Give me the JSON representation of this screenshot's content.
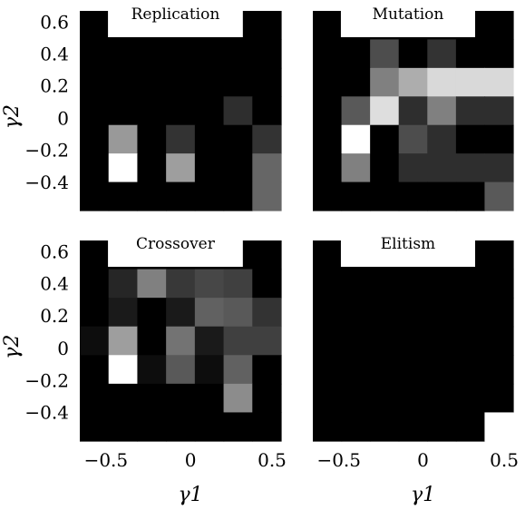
{
  "chart_data": [
    {
      "type": "heatmap",
      "title": "Replication",
      "xlabel": "",
      "ylabel": "γ2",
      "x_ticklabels": [],
      "y_ticklabels": [
        "0.6",
        "0.4",
        "0.2",
        "0",
        "−0.2",
        "−0.4"
      ],
      "values": [
        [
          0,
          0,
          0,
          0,
          0,
          0,
          0
        ],
        [
          0,
          0,
          0,
          0,
          0,
          0,
          0
        ],
        [
          0,
          0,
          0,
          0,
          0,
          0,
          0
        ],
        [
          0,
          0,
          0,
          0,
          0,
          0.18,
          0
        ],
        [
          0,
          0.6,
          0,
          0.2,
          0,
          0,
          0.2
        ],
        [
          0,
          1.0,
          0,
          0.62,
          0,
          0,
          0.4
        ],
        [
          0,
          0,
          0,
          0,
          0,
          0,
          0.4
        ]
      ]
    },
    {
      "type": "heatmap",
      "title": "Mutation",
      "xlabel": "",
      "ylabel": "",
      "x_ticklabels": [],
      "y_ticklabels": [],
      "values": [
        [
          0,
          0,
          0,
          0,
          0,
          0,
          0
        ],
        [
          0,
          0,
          0.3,
          0,
          0.2,
          0,
          0
        ],
        [
          0,
          0,
          0.5,
          0.68,
          0.85,
          0.85,
          0.85
        ],
        [
          0,
          0.35,
          0.87,
          0.18,
          0.5,
          0.18,
          0.18
        ],
        [
          0,
          1.0,
          0,
          0.3,
          0.18,
          0,
          0
        ],
        [
          0,
          0.5,
          0,
          0.18,
          0.18,
          0.18,
          0.18
        ],
        [
          0,
          0,
          0,
          0,
          0,
          0,
          0.35
        ]
      ]
    },
    {
      "type": "heatmap",
      "title": "Crossover",
      "xlabel": "γ1",
      "ylabel": "γ2",
      "x_ticklabels": [
        "−0.5",
        "0",
        "0.5"
      ],
      "y_ticklabels": [
        "0.6",
        "0.4",
        "0.2",
        "0",
        "−0.2",
        "−0.4"
      ],
      "values": [
        [
          0,
          0,
          0,
          0,
          0,
          0,
          0
        ],
        [
          0,
          0.15,
          0.5,
          0.22,
          0.28,
          0.25,
          0
        ],
        [
          0,
          0.1,
          0,
          0.1,
          0.38,
          0.35,
          0.2
        ],
        [
          0.05,
          0.62,
          0,
          0.45,
          0.1,
          0.25,
          0.25
        ],
        [
          0,
          1.0,
          0.05,
          0.35,
          0.05,
          0.38,
          0
        ],
        [
          0,
          0,
          0,
          0,
          0,
          0.55,
          0
        ],
        [
          0,
          0,
          0,
          0,
          0,
          0,
          0
        ]
      ]
    },
    {
      "type": "heatmap",
      "title": "Elitism",
      "xlabel": "γ1",
      "ylabel": "",
      "x_ticklabels": [
        "−0.5",
        "0",
        "0.5"
      ],
      "y_ticklabels": [],
      "values": [
        [
          0,
          0,
          0,
          0,
          0,
          0,
          0
        ],
        [
          0,
          0,
          0,
          0,
          0,
          0,
          0
        ],
        [
          0,
          0,
          0,
          0,
          0,
          0,
          0
        ],
        [
          0,
          0,
          0,
          0,
          0,
          0,
          0
        ],
        [
          0,
          0,
          0,
          0,
          0,
          0,
          0
        ],
        [
          0,
          0,
          0,
          0,
          0,
          0,
          0
        ],
        [
          0,
          0,
          0,
          0,
          0,
          0,
          1.0
        ]
      ]
    }
  ]
}
